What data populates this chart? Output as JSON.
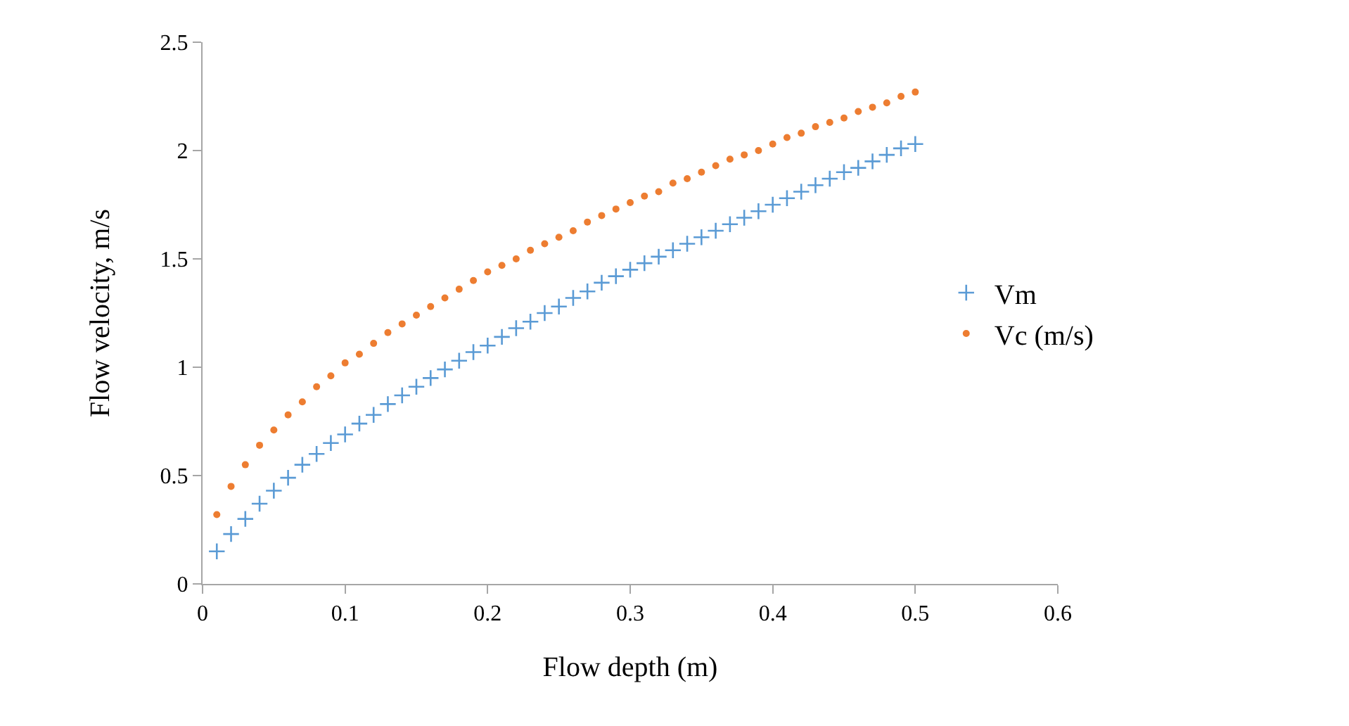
{
  "chart_data": {
    "type": "scatter",
    "xlabel": "Flow depth (m)",
    "ylabel": "Flow velocity, m/s",
    "x": [
      0.01,
      0.02,
      0.03,
      0.04,
      0.05,
      0.06,
      0.07,
      0.08,
      0.09,
      0.1,
      0.11,
      0.12,
      0.13,
      0.14,
      0.15,
      0.16,
      0.17,
      0.18,
      0.19,
      0.2,
      0.21,
      0.22,
      0.23,
      0.24,
      0.25,
      0.26,
      0.27,
      0.28,
      0.29,
      0.3,
      0.31,
      0.32,
      0.33,
      0.34,
      0.35,
      0.36,
      0.37,
      0.38,
      0.39,
      0.4,
      0.41,
      0.42,
      0.43,
      0.44,
      0.45,
      0.46,
      0.47,
      0.48,
      0.49,
      0.5
    ],
    "series": [
      {
        "name": "Vm",
        "color": "#5b9bd5",
        "marker": "cross",
        "values": [
          0.15,
          0.23,
          0.3,
          0.37,
          0.43,
          0.49,
          0.55,
          0.6,
          0.65,
          0.69,
          0.74,
          0.78,
          0.83,
          0.87,
          0.91,
          0.95,
          0.99,
          1.03,
          1.07,
          1.1,
          1.14,
          1.18,
          1.21,
          1.25,
          1.28,
          1.32,
          1.35,
          1.39,
          1.42,
          1.45,
          1.48,
          1.51,
          1.54,
          1.57,
          1.6,
          1.63,
          1.66,
          1.69,
          1.72,
          1.75,
          1.78,
          1.81,
          1.84,
          1.87,
          1.9,
          1.92,
          1.95,
          1.98,
          2.01,
          2.03
        ]
      },
      {
        "name": "Vc (m/s)",
        "color": "#ed7d31",
        "marker": "circle",
        "values": [
          0.32,
          0.45,
          0.55,
          0.64,
          0.71,
          0.78,
          0.84,
          0.91,
          0.96,
          1.02,
          1.06,
          1.11,
          1.16,
          1.2,
          1.24,
          1.28,
          1.32,
          1.36,
          1.4,
          1.44,
          1.47,
          1.5,
          1.54,
          1.57,
          1.6,
          1.63,
          1.67,
          1.7,
          1.73,
          1.76,
          1.79,
          1.81,
          1.85,
          1.87,
          1.9,
          1.93,
          1.96,
          1.98,
          2.0,
          2.03,
          2.06,
          2.08,
          2.11,
          2.13,
          2.15,
          2.18,
          2.2,
          2.22,
          2.25,
          2.27
        ]
      }
    ],
    "xlim": [
      0,
      0.6
    ],
    "xticks": [
      0,
      0.1,
      0.2,
      0.3,
      0.4,
      0.5,
      0.6
    ],
    "ylim": [
      0,
      2.5
    ],
    "yticks": [
      0,
      0.5,
      1,
      1.5,
      2,
      2.5
    ],
    "grid": false,
    "legend": "right"
  }
}
